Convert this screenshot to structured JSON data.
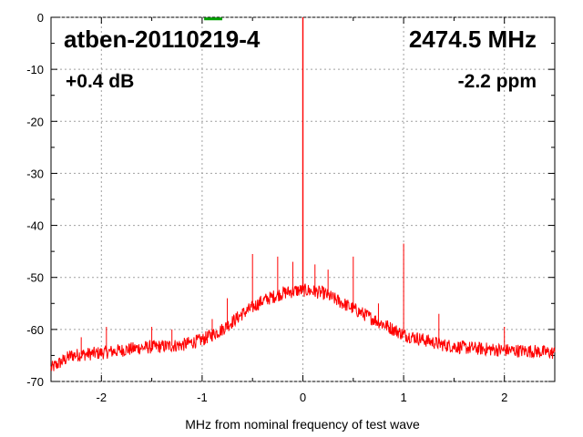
{
  "chart_data": {
    "type": "line",
    "title": "",
    "xlabel": "MHz from nominal frequency of test wave",
    "ylabel": "",
    "xlim": [
      -2.5,
      2.5
    ],
    "ylim": [
      -70,
      0
    ],
    "x_ticks": [
      -2,
      -1,
      0,
      1,
      2
    ],
    "x_tick_labels": [
      "-2",
      "-1",
      "0",
      "1",
      "2"
    ],
    "y_ticks": [
      0,
      -10,
      -20,
      -30,
      -40,
      -50,
      -60,
      -70
    ],
    "y_tick_labels": [
      "0",
      "-10",
      "-20",
      "-30",
      "-40",
      "-50",
      "-60",
      "-70"
    ],
    "grid": true,
    "series_color": "#ff0000",
    "marker_color": "#00a000",
    "annotations": {
      "device": "atben-20110219-4",
      "frequency": "2474.5 MHz",
      "level": "+0.4 dB",
      "offset": "-2.2 ppm"
    },
    "noise_floor": {
      "x": [
        -2.5,
        -2.3,
        -2.0,
        -1.6,
        -1.2,
        -1.0,
        -0.8,
        -0.6,
        -0.4,
        -0.2,
        -0.05,
        0.05,
        0.2,
        0.4,
        0.6,
        0.8,
        1.0,
        1.2,
        1.4,
        1.6,
        2.0,
        2.3,
        2.5
      ],
      "y": [
        -67.5,
        -65,
        -64.5,
        -63.5,
        -63,
        -62,
        -60,
        -57,
        -54.5,
        -53,
        -52.5,
        -52.5,
        -53,
        -55,
        -57,
        -59,
        -61,
        -62,
        -63,
        -63.5,
        -64,
        -64.2,
        -64.5
      ]
    },
    "spurs": {
      "x": [
        0.0,
        -0.5,
        -0.25,
        -0.1,
        -0.75,
        -0.6,
        -0.9,
        -1.5,
        -2.2,
        -1.95,
        -1.3,
        0.12,
        0.25,
        0.5,
        0.75,
        1.0,
        1.35,
        2.0
      ],
      "y": [
        0.0,
        -45.5,
        -46,
        -47,
        -54,
        -56,
        -58,
        -59.5,
        -61.5,
        -59.5,
        -60,
        -47.5,
        -48.5,
        -46,
        -55,
        -43.5,
        -57,
        -59.5
      ]
    },
    "marker": {
      "x": [
        -0.98,
        -0.8
      ],
      "y": [
        -0.3,
        -0.3
      ]
    }
  }
}
